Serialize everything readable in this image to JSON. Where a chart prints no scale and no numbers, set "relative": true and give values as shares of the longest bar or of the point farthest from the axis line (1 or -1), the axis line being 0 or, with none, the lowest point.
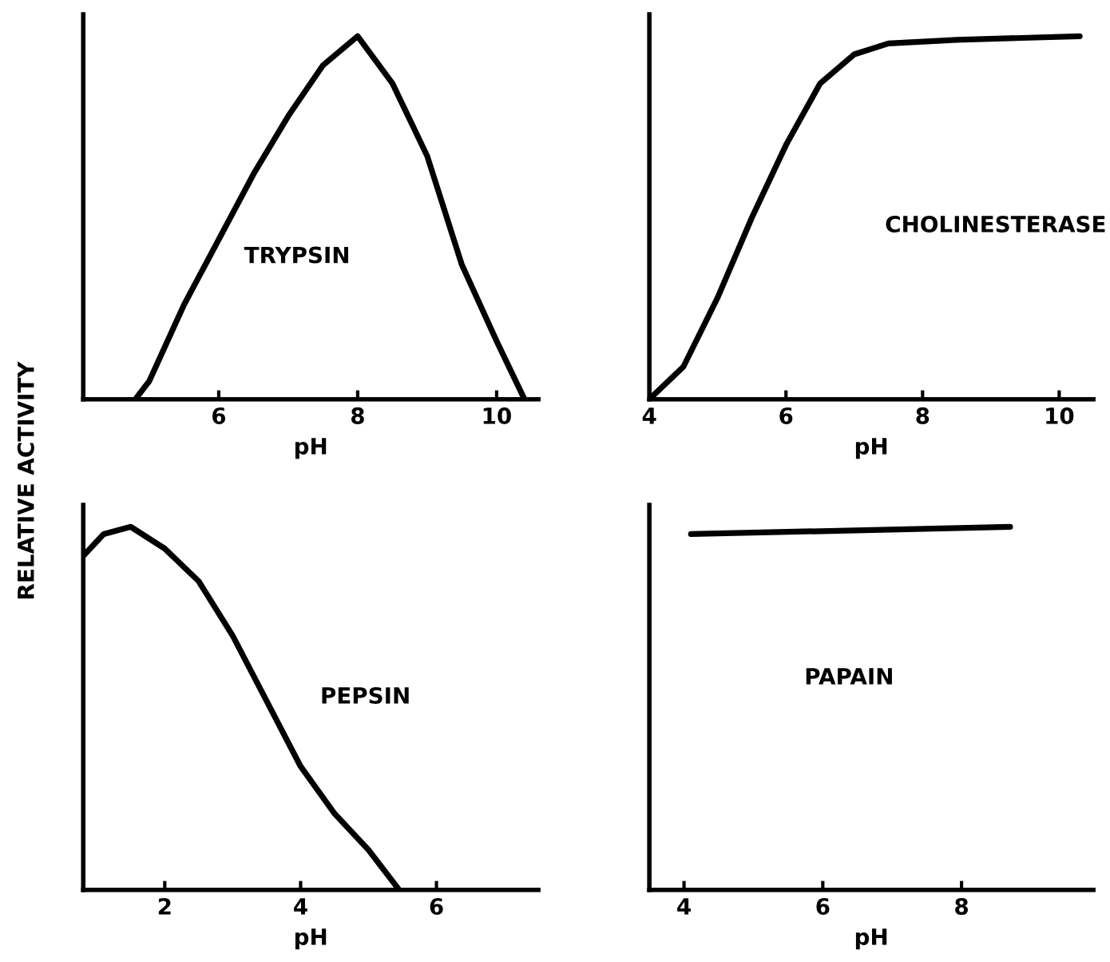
{
  "chart_data": [
    {
      "type": "line",
      "relative": true,
      "xlabel": "pH",
      "ylabel": "RELATIVE ACTIVITY",
      "annotations": [
        "TRYPSIN"
      ],
      "xlim": [
        4.05,
        10.6
      ],
      "xticks": [
        6,
        8,
        10
      ],
      "grid": false,
      "legend": false,
      "marker": "none",
      "line_style": "solid",
      "series": [
        {
          "color": "#000000",
          "x": [
            4.8,
            5.0,
            5.5,
            6.0,
            6.5,
            7.0,
            7.5,
            8.0,
            8.5,
            9.0,
            9.5,
            10.0,
            10.4
          ],
          "values": [
            0,
            0.05,
            0.26,
            0.44,
            0.62,
            0.78,
            0.92,
            1.0,
            0.87,
            0.67,
            0.37,
            0.16,
            0
          ]
        }
      ]
    },
    {
      "type": "line",
      "relative": true,
      "xlabel": "pH",
      "annotations": [
        "CHOLINESTERASE"
      ],
      "xlim": [
        4,
        10.5
      ],
      "xticks": [
        4,
        6,
        8,
        10
      ],
      "grid": false,
      "legend": false,
      "marker": "none",
      "line_style": "solid",
      "series": [
        {
          "color": "#000000",
          "x": [
            4.0,
            4.5,
            5.0,
            5.5,
            6.0,
            6.5,
            7.0,
            7.5,
            8.5,
            10.3
          ],
          "values": [
            0,
            0.09,
            0.28,
            0.5,
            0.7,
            0.87,
            0.95,
            0.98,
            0.99,
            1.0
          ]
        }
      ]
    },
    {
      "type": "line",
      "relative": true,
      "xlabel": "pH",
      "annotations": [
        "PEPSIN"
      ],
      "xlim": [
        0.8,
        7.5
      ],
      "xticks": [
        2,
        4,
        6
      ],
      "grid": false,
      "legend": false,
      "marker": "none",
      "line_style": "solid",
      "series": [
        {
          "color": "#000000",
          "x": [
            0.8,
            1.1,
            1.5,
            2.0,
            2.5,
            3.0,
            3.5,
            4.0,
            4.5,
            5.0,
            5.45
          ],
          "values": [
            0.92,
            0.98,
            1.0,
            0.94,
            0.85,
            0.7,
            0.52,
            0.34,
            0.21,
            0.11,
            0
          ]
        }
      ]
    },
    {
      "type": "line",
      "relative": true,
      "xlabel": "pH",
      "annotations": [
        "PAPAIN"
      ],
      "xlim": [
        3.5,
        9.9
      ],
      "xticks": [
        4,
        6,
        8
      ],
      "grid": false,
      "legend": false,
      "marker": "none",
      "line_style": "solid",
      "series": [
        {
          "color": "#000000",
          "x": [
            4.1,
            8.7
          ],
          "values": [
            0.98,
            1.0
          ]
        }
      ]
    }
  ]
}
